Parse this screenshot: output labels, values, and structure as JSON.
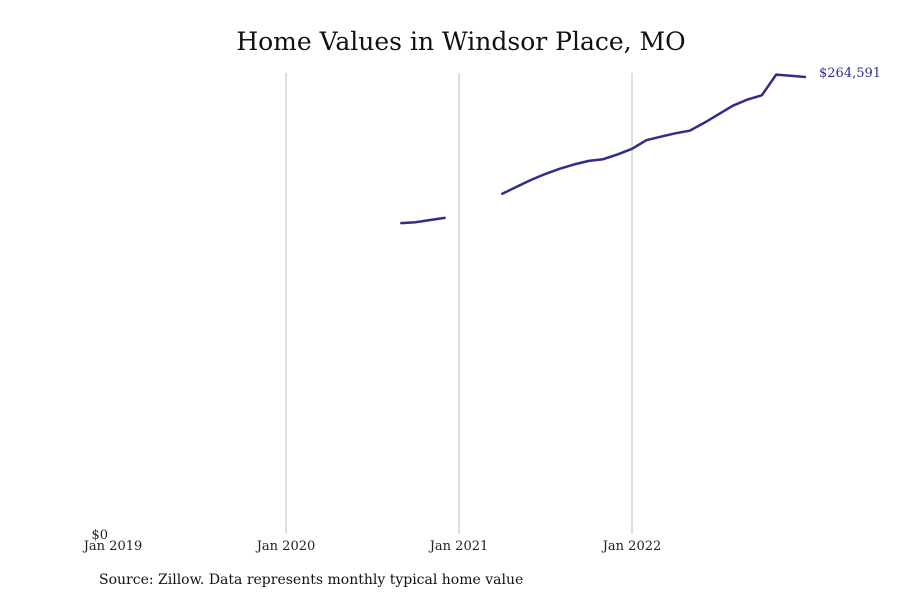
{
  "chart_data": {
    "type": "line",
    "title": "Home Values in Windsor Place, MO",
    "xlabel": "",
    "ylabel": "",
    "x_ticks": [
      "Jan 2019",
      "Jan 2020",
      "Jan 2021",
      "Jan 2022"
    ],
    "y_ticks": [
      "$0"
    ],
    "ylim": [
      0,
      264591
    ],
    "grid": "vertical",
    "line_color": "#2e2d8a",
    "end_label": "$264,591",
    "series": [
      {
        "segments": [
          [
            {
              "x": "2020-09",
              "y": 180000
            },
            {
              "x": "2020-10",
              "y": 180500
            },
            {
              "x": "2020-11",
              "y": 181800
            },
            {
              "x": "2020-12",
              "y": 183000
            }
          ],
          [
            {
              "x": "2021-04",
              "y": 197000
            },
            {
              "x": "2021-05",
              "y": 201000
            },
            {
              "x": "2021-06",
              "y": 205000
            },
            {
              "x": "2021-07",
              "y": 208500
            },
            {
              "x": "2021-08",
              "y": 211500
            },
            {
              "x": "2021-09",
              "y": 214000
            },
            {
              "x": "2021-10",
              "y": 216000
            },
            {
              "x": "2021-11",
              "y": 217000
            },
            {
              "x": "2021-12",
              "y": 219800
            },
            {
              "x": "2022-01",
              "y": 223000
            },
            {
              "x": "2022-02",
              "y": 228000
            },
            {
              "x": "2022-03",
              "y": 230000
            },
            {
              "x": "2022-04",
              "y": 232000
            },
            {
              "x": "2022-05",
              "y": 233500
            },
            {
              "x": "2022-06",
              "y": 238000
            },
            {
              "x": "2022-07",
              "y": 243000
            },
            {
              "x": "2022-08",
              "y": 248000
            },
            {
              "x": "2022-09",
              "y": 251500
            },
            {
              "x": "2022-10",
              "y": 254000
            },
            {
              "x": "2022-11",
              "y": 266000
            },
            {
              "x": "2022-12",
              "y": 265300
            },
            {
              "x": "2023-01",
              "y": 264591
            }
          ]
        ]
      }
    ]
  },
  "source_text": "Source: Zillow. Data represents monthly typical home value"
}
